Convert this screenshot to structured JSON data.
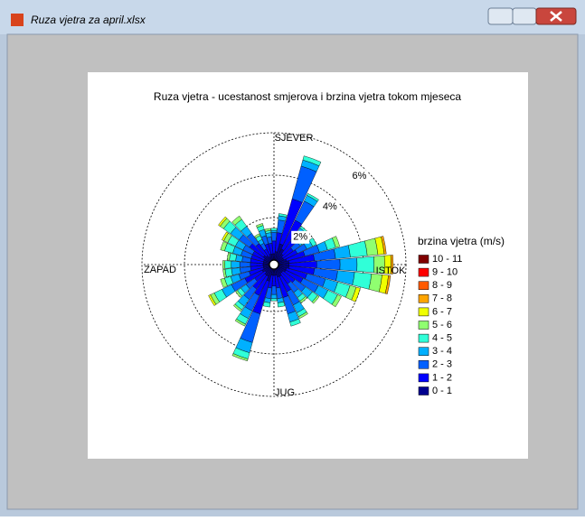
{
  "window": {
    "title": "Ruza vjetra za april.xlsx"
  },
  "chart_data": {
    "type": "windrose",
    "title": "Ruza vjetra - ucestanost smjerova i brzina vjetra tokom mjeseca",
    "direction_labels": [
      "SJEVER",
      "ISTOK",
      "JUG",
      "ZAPAD"
    ],
    "directions": [
      0,
      10,
      20,
      30,
      40,
      50,
      60,
      70,
      80,
      90,
      100,
      110,
      120,
      130,
      140,
      150,
      160,
      170,
      180,
      190,
      200,
      210,
      220,
      230,
      240,
      250,
      260,
      270,
      280,
      290,
      300,
      310,
      320,
      330,
      340,
      350
    ],
    "rlim": [
      0,
      6
    ],
    "rticks": [
      {
        "value": 2,
        "label": "2%"
      },
      {
        "value": 4,
        "label": "4%"
      },
      {
        "value": 6,
        "label": "6%"
      }
    ],
    "legend_title": "brzina vjetra (m/s)",
    "series": [
      {
        "name": "0 - 1",
        "color": "#00008f",
        "values": [
          0.3,
          0.4,
          0.8,
          0.6,
          0.4,
          0.3,
          0.3,
          0.4,
          0.5,
          0.5,
          0.5,
          0.4,
          0.4,
          0.3,
          0.3,
          0.4,
          0.4,
          0.3,
          0.3,
          0.3,
          0.6,
          0.4,
          0.4,
          0.3,
          0.4,
          0.3,
          0.3,
          0.3,
          0.3,
          0.3,
          0.3,
          0.4,
          0.3,
          0.2,
          0.3,
          0.3
        ]
      },
      {
        "name": "1 - 2",
        "color": "#0000ff",
        "values": [
          0.6,
          0.9,
          2.2,
          1.5,
          0.8,
          0.6,
          0.7,
          0.9,
          1.2,
          1.3,
          1.2,
          1.0,
          0.9,
          0.7,
          0.6,
          0.8,
          1.0,
          0.6,
          0.5,
          0.6,
          1.6,
          1.0,
          0.8,
          0.6,
          0.9,
          0.7,
          0.6,
          0.6,
          0.6,
          0.6,
          0.6,
          0.8,
          0.7,
          0.4,
          0.5,
          0.5
        ]
      },
      {
        "name": "2 - 3",
        "color": "#0060ff",
        "values": [
          0.4,
          0.6,
          1.6,
          1.0,
          0.5,
          0.4,
          0.5,
          0.7,
          1.0,
          1.1,
          1.1,
          0.9,
          0.8,
          0.6,
          0.5,
          0.7,
          0.8,
          0.5,
          0.4,
          0.5,
          1.4,
          0.8,
          0.6,
          0.5,
          0.7,
          0.5,
          0.5,
          0.5,
          0.4,
          0.5,
          0.5,
          0.6,
          0.6,
          0.3,
          0.4,
          0.3
        ]
      },
      {
        "name": "3 - 4",
        "color": "#00b0ff",
        "values": [
          0.1,
          0.2,
          0.3,
          0.3,
          0.2,
          0.1,
          0.3,
          0.4,
          0.7,
          0.8,
          0.8,
          0.6,
          0.5,
          0.4,
          0.3,
          0.4,
          0.4,
          0.2,
          0.2,
          0.2,
          0.5,
          0.4,
          0.4,
          0.3,
          0.5,
          0.4,
          0.4,
          0.4,
          0.3,
          0.4,
          0.4,
          0.5,
          0.4,
          0.2,
          0.3,
          0.2
        ]
      },
      {
        "name": "4 - 5",
        "color": "#30ffd8",
        "values": [
          0.1,
          0.1,
          0.2,
          0.1,
          0.1,
          0.1,
          0.2,
          0.4,
          0.8,
          0.8,
          0.8,
          0.6,
          0.5,
          0.3,
          0.2,
          0.2,
          0.2,
          0.2,
          0.1,
          0.2,
          0.3,
          0.3,
          0.2,
          0.2,
          0.4,
          0.3,
          0.3,
          0.3,
          0.3,
          0.4,
          0.4,
          0.4,
          0.4,
          0.2,
          0.2,
          0.1
        ]
      },
      {
        "name": "5 - 6",
        "color": "#90ff70",
        "values": [
          0,
          0,
          0,
          0,
          0,
          0,
          0,
          0.2,
          0.5,
          0.5,
          0.5,
          0.3,
          0.2,
          0.1,
          0.1,
          0.1,
          0,
          0,
          0,
          0,
          0.1,
          0.1,
          0.1,
          0.1,
          0.2,
          0.2,
          0.1,
          0.1,
          0.1,
          0.2,
          0.2,
          0.2,
          0.2,
          0.1,
          0.1,
          0.1
        ]
      },
      {
        "name": "6 - 7",
        "color": "#f0ff00",
        "values": [
          0,
          0,
          0,
          0,
          0,
          0,
          0,
          0,
          0.3,
          0.3,
          0.3,
          0.2,
          0,
          0,
          0,
          0,
          0,
          0,
          0,
          0,
          0,
          0,
          0,
          0,
          0.1,
          0,
          0,
          0,
          0,
          0,
          0.1,
          0.1,
          0,
          0,
          0,
          0
        ]
      },
      {
        "name": "7 - 8",
        "color": "#ffa500",
        "values": [
          0,
          0,
          0,
          0,
          0,
          0,
          0,
          0,
          0.1,
          0.1,
          0.1,
          0,
          0,
          0,
          0,
          0,
          0,
          0,
          0,
          0,
          0,
          0,
          0,
          0,
          0,
          0,
          0,
          0,
          0,
          0,
          0,
          0,
          0,
          0,
          0,
          0
        ]
      },
      {
        "name": "8 - 9",
        "color": "#ff5a00",
        "values": [
          0,
          0,
          0,
          0,
          0,
          0,
          0,
          0,
          0,
          0,
          0,
          0,
          0,
          0,
          0,
          0,
          0,
          0,
          0,
          0,
          0,
          0,
          0,
          0,
          0,
          0,
          0,
          0,
          0,
          0,
          0,
          0,
          0,
          0,
          0,
          0
        ]
      },
      {
        "name": "9 - 10",
        "color": "#ff0000",
        "values": [
          0,
          0,
          0,
          0,
          0,
          0,
          0,
          0,
          0,
          0,
          0,
          0,
          0,
          0,
          0,
          0,
          0,
          0,
          0,
          0,
          0,
          0,
          0,
          0,
          0,
          0,
          0,
          0,
          0,
          0,
          0,
          0,
          0,
          0,
          0,
          0
        ]
      },
      {
        "name": "10 - 11",
        "color": "#800000",
        "values": [
          0,
          0,
          0,
          0,
          0,
          0,
          0,
          0,
          0,
          0,
          0,
          0,
          0,
          0,
          0,
          0,
          0,
          0,
          0,
          0,
          0,
          0,
          0,
          0,
          0,
          0,
          0,
          0,
          0,
          0,
          0,
          0,
          0,
          0,
          0,
          0
        ]
      }
    ]
  }
}
